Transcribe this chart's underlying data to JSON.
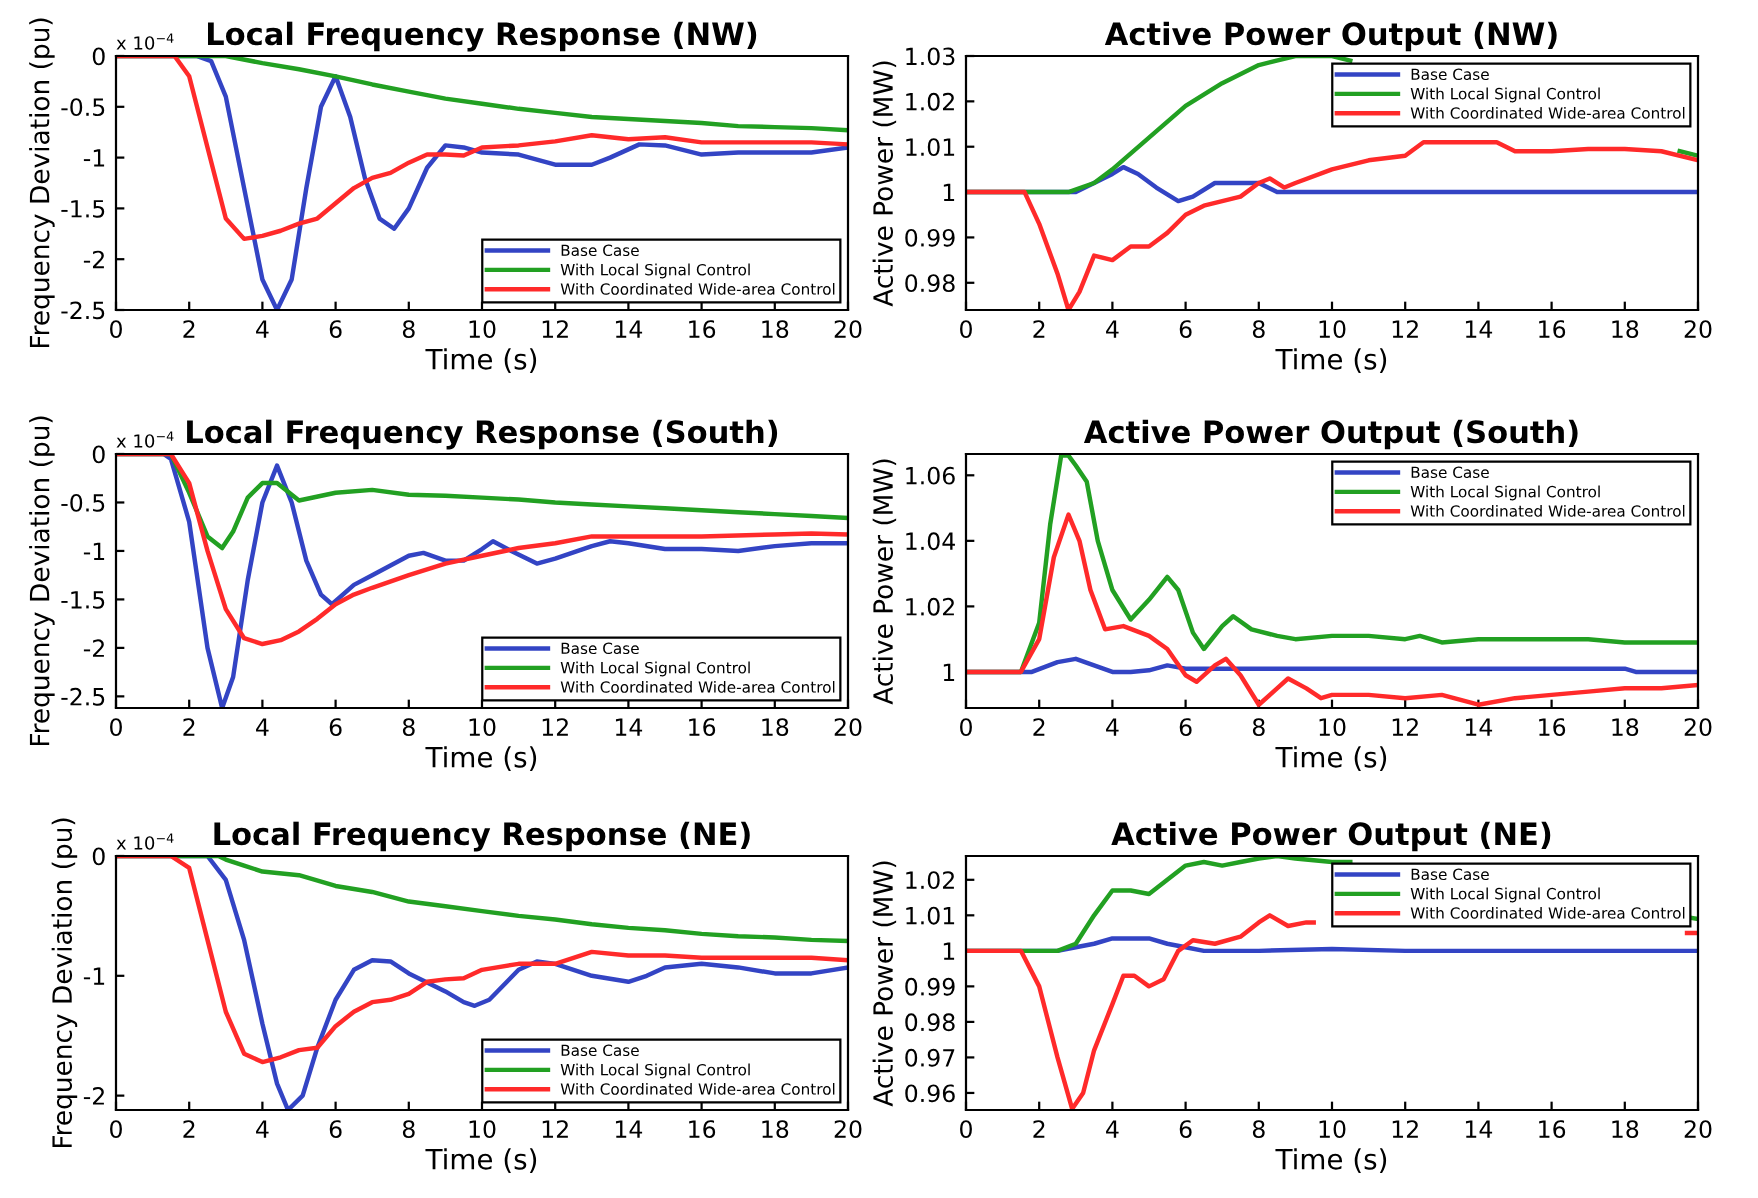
{
  "chart_data": [
    {
      "type": "line",
      "title": "Local Frequency Response (NW)",
      "xlabel": "Time (s)",
      "ylabel": "Frequency Deviation (pu)",
      "annotations": [
        "x 10$^{−4}$"
      ],
      "legend": "bottom right",
      "xlim": [
        0,
        20
      ],
      "xticks": [
        0,
        2,
        4,
        6,
        8,
        10,
        12,
        14,
        16,
        18,
        20
      ],
      "ylim": [
        -2.5,
        0
      ],
      "yticks": [
        0,
        -0.5,
        -1,
        -1.5,
        -2,
        -2.5
      ],
      "series": [
        {
          "name": "Base Case",
          "color": "#3344c4",
          "x": [
            0,
            1,
            2.2,
            2.6,
            3,
            3.5,
            4,
            4.4,
            4.8,
            5.2,
            5.6,
            6.0,
            6.4,
            6.8,
            7.2,
            7.6,
            8.0,
            8.5,
            9.0,
            9.5,
            10,
            11,
            12,
            13,
            13.5,
            14.3,
            15,
            16,
            17,
            18,
            19,
            20
          ],
          "values": [
            0,
            0,
            0,
            -0.05,
            -0.4,
            -1.3,
            -2.2,
            -2.5,
            -2.2,
            -1.3,
            -0.5,
            -0.2,
            -0.6,
            -1.2,
            -1.6,
            -1.7,
            -1.5,
            -1.1,
            -0.88,
            -0.9,
            -0.95,
            -0.97,
            -1.07,
            -1.07,
            -1.0,
            -0.87,
            -0.88,
            -0.97,
            -0.95,
            -0.95,
            -0.95,
            -0.9
          ]
        },
        {
          "name": "With Local Signal Control",
          "color": "#22a022",
          "x": [
            0,
            2,
            3,
            4,
            5,
            6,
            7,
            8,
            9,
            10,
            11,
            12,
            13,
            14,
            15,
            16,
            17,
            18,
            19,
            20
          ],
          "values": [
            0,
            0,
            0,
            -0.07,
            -0.13,
            -0.2,
            -0.28,
            -0.35,
            -0.42,
            -0.47,
            -0.52,
            -0.56,
            -0.6,
            -0.62,
            -0.64,
            -0.66,
            -0.69,
            -0.7,
            -0.71,
            -0.73
          ]
        },
        {
          "name": "With Coordinated Wide-area Control",
          "color": "#ff2a2a",
          "x": [
            0,
            1.6,
            2,
            2.5,
            3,
            3.5,
            4,
            4.5,
            5,
            5.5,
            6,
            6.5,
            7,
            7.5,
            8,
            8.5,
            9,
            9.5,
            10,
            11,
            12,
            13,
            14,
            15,
            16,
            17,
            18,
            19,
            20
          ],
          "values": [
            0,
            0,
            -0.2,
            -0.9,
            -1.6,
            -1.8,
            -1.77,
            -1.72,
            -1.65,
            -1.6,
            -1.45,
            -1.3,
            -1.2,
            -1.15,
            -1.05,
            -0.97,
            -0.97,
            -0.98,
            -0.9,
            -0.88,
            -0.84,
            -0.78,
            -0.82,
            -0.8,
            -0.85,
            -0.85,
            -0.85,
            -0.85,
            -0.87
          ]
        }
      ]
    },
    {
      "type": "line",
      "title": "Active Power Output (NW)",
      "xlabel": "Time (s)",
      "ylabel": "Active Power (MW)",
      "legend": "top right",
      "xlim": [
        0,
        20
      ],
      "xticks": [
        0,
        2,
        4,
        6,
        8,
        10,
        12,
        14,
        16,
        18,
        20
      ],
      "ylim": [
        0.974,
        1.03
      ],
      "yticks": [
        0.98,
        0.99,
        1,
        1.01,
        1.02,
        1.03
      ],
      "series": [
        {
          "name": "Base Case",
          "color": "#3344c4",
          "x": [
            0,
            3,
            3.5,
            4,
            4.3,
            4.7,
            5.2,
            5.8,
            6.2,
            6.8,
            7.5,
            8,
            8.5,
            10,
            12,
            14,
            16,
            18,
            20
          ],
          "values": [
            1,
            1,
            1.002,
            1.004,
            1.0055,
            1.004,
            1.001,
            0.998,
            0.999,
            1.002,
            1.002,
            1.002,
            1.0,
            1.0,
            1.0,
            1.0,
            1.0,
            1.0,
            1.0
          ]
        },
        {
          "name": "With Local Signal Control",
          "color": "#22a022",
          "x": [
            0,
            2.8,
            3.5,
            4,
            5,
            6,
            7,
            8,
            9,
            10,
            10.5,
            11,
            19,
            19.5,
            20
          ],
          "values": [
            1,
            1,
            1.002,
            1.005,
            1.012,
            1.019,
            1.024,
            1.028,
            1.03,
            1.03,
            1.029,
            null,
            null,
            1.009,
            1.008
          ]
        },
        {
          "name": "With Coordinated Wide-area Control",
          "color": "#ff2a2a",
          "x": [
            0,
            1.6,
            2,
            2.5,
            2.8,
            3.1,
            3.5,
            4,
            4.5,
            5,
            5.5,
            6,
            6.5,
            7,
            7.5,
            8,
            8.3,
            8.7,
            9,
            10,
            11,
            12,
            12.5,
            13,
            14,
            14.5,
            15,
            16,
            17,
            18,
            19,
            20
          ],
          "values": [
            1,
            1,
            0.993,
            0.982,
            0.974,
            0.978,
            0.986,
            0.985,
            0.988,
            0.988,
            0.991,
            0.995,
            0.997,
            0.998,
            0.999,
            1.002,
            1.003,
            1.001,
            1.002,
            1.005,
            1.007,
            1.008,
            1.011,
            1.011,
            1.011,
            1.011,
            1.009,
            1.009,
            1.0095,
            1.0095,
            1.009,
            1.007
          ]
        }
      ]
    },
    {
      "type": "line",
      "title": "Local Frequency Response (South)",
      "xlabel": "Time (s)",
      "ylabel": "Frequency Deviation (pu)",
      "annotations": [
        "x 10$^{−4}$"
      ],
      "legend": "bottom right",
      "xlim": [
        0,
        20
      ],
      "xticks": [
        0,
        2,
        4,
        6,
        8,
        10,
        12,
        14,
        16,
        18,
        20
      ],
      "ylim": [
        -2.62,
        0
      ],
      "yticks": [
        0,
        -0.5,
        -1,
        -1.5,
        -2,
        -2.5
      ],
      "series": [
        {
          "name": "Base Case",
          "color": "#3344c4",
          "x": [
            0,
            1.3,
            1.5,
            2,
            2.5,
            2.9,
            3.2,
            3.6,
            4.0,
            4.4,
            4.8,
            5.2,
            5.6,
            5.9,
            6.5,
            7,
            7.5,
            8,
            8.4,
            9,
            9.5,
            10,
            10.3,
            10.8,
            11.5,
            12,
            13,
            13.5,
            14,
            15,
            16,
            17,
            18,
            19,
            20
          ],
          "values": [
            0,
            0,
            -0.05,
            -0.7,
            -2.0,
            -2.62,
            -2.3,
            -1.3,
            -0.5,
            -0.12,
            -0.5,
            -1.1,
            -1.45,
            -1.55,
            -1.35,
            -1.25,
            -1.15,
            -1.05,
            -1.02,
            -1.1,
            -1.1,
            -0.98,
            -0.9,
            -1.0,
            -1.13,
            -1.08,
            -0.95,
            -0.9,
            -0.92,
            -0.98,
            -0.98,
            -1.0,
            -0.95,
            -0.92,
            -0.92
          ]
        },
        {
          "name": "With Local Signal Control",
          "color": "#22a022",
          "x": [
            0,
            1.5,
            2,
            2.5,
            2.9,
            3.2,
            3.6,
            4,
            4.4,
            5,
            6,
            7,
            8,
            9,
            10,
            11,
            12,
            13,
            14,
            15,
            16,
            17,
            18,
            19,
            20
          ],
          "values": [
            0,
            0,
            -0.4,
            -0.85,
            -0.97,
            -0.8,
            -0.45,
            -0.3,
            -0.3,
            -0.48,
            -0.4,
            -0.37,
            -0.42,
            -0.43,
            -0.45,
            -0.47,
            -0.5,
            -0.52,
            -0.54,
            -0.56,
            -0.58,
            -0.6,
            -0.62,
            -0.64,
            -0.66
          ]
        },
        {
          "name": "With Coordinated Wide-area Control",
          "color": "#ff2a2a",
          "x": [
            0,
            1.5,
            2,
            2.5,
            3,
            3.5,
            4,
            4.5,
            5,
            5.5,
            6,
            6.5,
            7,
            8,
            9,
            10,
            11,
            12,
            13,
            14,
            16,
            18,
            19,
            20
          ],
          "values": [
            0,
            0,
            -0.3,
            -1.0,
            -1.6,
            -1.9,
            -1.96,
            -1.92,
            -1.83,
            -1.7,
            -1.55,
            -1.45,
            -1.38,
            -1.25,
            -1.13,
            -1.05,
            -0.97,
            -0.92,
            -0.85,
            -0.85,
            -0.85,
            -0.83,
            -0.82,
            -0.83
          ]
        }
      ]
    },
    {
      "type": "line",
      "title": "Active Power Output (South)",
      "xlabel": "Time (s)",
      "ylabel": "Active Power (MW)",
      "legend": "top right",
      "xlim": [
        0,
        20
      ],
      "xticks": [
        0,
        2,
        4,
        6,
        8,
        10,
        12,
        14,
        16,
        18,
        20
      ],
      "ylim": [
        0.989,
        1.0665
      ],
      "yticks": [
        1,
        1.02,
        1.04,
        1.06
      ],
      "series": [
        {
          "name": "Base Case",
          "color": "#3344c4",
          "x": [
            0,
            1.8,
            2.5,
            3,
            3.5,
            4,
            4.5,
            5,
            5.5,
            6,
            7,
            10,
            14,
            18,
            18.3,
            20
          ],
          "values": [
            1,
            1,
            1.003,
            1.004,
            1.002,
            1.0,
            1.0,
            1.0005,
            1.002,
            1.001,
            1.001,
            1.001,
            1.001,
            1.001,
            1.0,
            1.0
          ]
        },
        {
          "name": "With Local Signal Control",
          "color": "#22a022",
          "x": [
            0,
            1.5,
            2,
            2.3,
            2.6,
            2.8,
            3.0,
            3.3,
            3.6,
            4,
            4.5,
            5,
            5.5,
            5.8,
            6.2,
            6.5,
            7,
            7.3,
            7.8,
            8.5,
            9,
            10,
            11,
            12,
            12.4,
            13,
            14,
            15,
            16,
            17,
            18,
            19,
            20
          ],
          "values": [
            1,
            1,
            1.015,
            1.045,
            1.066,
            1.066,
            1.063,
            1.058,
            1.04,
            1.025,
            1.016,
            1.022,
            1.029,
            1.025,
            1.012,
            1.007,
            1.014,
            1.017,
            1.013,
            1.011,
            1.01,
            1.011,
            1.011,
            1.01,
            1.011,
            1.009,
            1.01,
            1.01,
            1.01,
            1.01,
            1.009,
            1.009,
            1.009
          ]
        },
        {
          "name": "With Coordinated Wide-area Control",
          "color": "#ff2a2a",
          "x": [
            0,
            1.5,
            2,
            2.4,
            2.8,
            3.1,
            3.4,
            3.8,
            4.3,
            5,
            5.5,
            6,
            6.3,
            6.8,
            7.1,
            7.5,
            8,
            8.5,
            8.8,
            9.3,
            9.7,
            10,
            11,
            12,
            13,
            14,
            15,
            16,
            17,
            18,
            19,
            20
          ],
          "values": [
            1,
            1,
            1.01,
            1.035,
            1.048,
            1.04,
            1.025,
            1.013,
            1.014,
            1.011,
            1.007,
            0.999,
            0.997,
            1.002,
            1.004,
            0.999,
            0.99,
            0.995,
            0.998,
            0.995,
            0.992,
            0.993,
            0.993,
            0.992,
            0.993,
            0.99,
            0.992,
            0.993,
            0.994,
            0.995,
            0.995,
            0.996
          ]
        }
      ]
    },
    {
      "type": "line",
      "title": "Local Frequency Response (NE)",
      "xlabel": "Time (s)",
      "ylabel": "Frequency Deviation (pu)",
      "annotations": [
        "x 10$^{−4}$"
      ],
      "legend": "bottom right",
      "xlim": [
        0,
        20
      ],
      "xticks": [
        0,
        2,
        4,
        6,
        8,
        10,
        12,
        14,
        16,
        18,
        20
      ],
      "ylim": [
        -2.12,
        0
      ],
      "yticks": [
        0,
        -1,
        -2
      ],
      "series": [
        {
          "name": "Base Case",
          "color": "#3344c4",
          "x": [
            0,
            2.5,
            3,
            3.5,
            4,
            4.4,
            4.7,
            5.1,
            5.5,
            6,
            6.5,
            7,
            7.5,
            8,
            9,
            9.5,
            9.8,
            10.2,
            11,
            11.5,
            12,
            13,
            14,
            14.5,
            15,
            16,
            17,
            18,
            19,
            20
          ],
          "values": [
            0,
            0,
            -0.2,
            -0.7,
            -1.4,
            -1.9,
            -2.12,
            -2.0,
            -1.6,
            -1.2,
            -0.95,
            -0.87,
            -0.88,
            -0.98,
            -1.13,
            -1.22,
            -1.25,
            -1.2,
            -0.95,
            -0.88,
            -0.9,
            -1.0,
            -1.05,
            -1.0,
            -0.93,
            -0.9,
            -0.93,
            -0.98,
            -0.98,
            -0.93
          ]
        },
        {
          "name": "With Local Signal Control",
          "color": "#22a022",
          "x": [
            0,
            2.8,
            3,
            3.5,
            4,
            5,
            6,
            7,
            8,
            9,
            10,
            11,
            12,
            13,
            14,
            15,
            16,
            17,
            18,
            19,
            20
          ],
          "values": [
            0,
            0,
            -0.03,
            -0.08,
            -0.13,
            -0.16,
            -0.25,
            -0.3,
            -0.38,
            -0.42,
            -0.46,
            -0.5,
            -0.53,
            -0.57,
            -0.6,
            -0.62,
            -0.65,
            -0.67,
            -0.68,
            -0.7,
            -0.71
          ]
        },
        {
          "name": "With Coordinated Wide-area Control",
          "color": "#ff2a2a",
          "x": [
            0,
            1.5,
            2,
            2.5,
            3,
            3.5,
            4,
            4.5,
            5,
            5.5,
            6,
            6.5,
            7,
            7.5,
            8,
            8.5,
            9,
            9.5,
            10,
            11,
            12,
            13,
            14,
            15,
            16,
            17,
            18,
            19,
            20
          ],
          "values": [
            0,
            0,
            -0.1,
            -0.7,
            -1.3,
            -1.65,
            -1.72,
            -1.68,
            -1.62,
            -1.6,
            -1.42,
            -1.3,
            -1.22,
            -1.2,
            -1.15,
            -1.05,
            -1.03,
            -1.02,
            -0.95,
            -0.9,
            -0.9,
            -0.8,
            -0.83,
            -0.83,
            -0.85,
            -0.85,
            -0.85,
            -0.85,
            -0.87
          ]
        }
      ]
    },
    {
      "type": "line",
      "title": "Active Power Output (NE)",
      "xlabel": "Time (s)",
      "ylabel": "Active Power (MW)",
      "legend": "top right",
      "xlim": [
        0,
        20
      ],
      "xticks": [
        0,
        2,
        4,
        6,
        8,
        10,
        12,
        14,
        16,
        18,
        20
      ],
      "ylim": [
        0.9552,
        1.0267
      ],
      "yticks": [
        0.96,
        0.97,
        0.98,
        0.99,
        1,
        1.01,
        1.02
      ],
      "series": [
        {
          "name": "Base Case",
          "color": "#3344c4",
          "x": [
            0,
            2.5,
            3,
            3.5,
            4,
            4.5,
            5,
            5.5,
            6,
            6.5,
            8,
            10,
            12,
            14,
            16,
            18,
            20
          ],
          "values": [
            1,
            1,
            1.001,
            1.002,
            1.0035,
            1.0035,
            1.0035,
            1.002,
            1.001,
            1.0,
            1.0,
            1.0005,
            1.0,
            1.0,
            1.0,
            1.0,
            1.0
          ]
        },
        {
          "name": "With Local Signal Control",
          "color": "#22a022",
          "x": [
            0,
            2.5,
            3,
            3.5,
            4,
            4.5,
            5,
            5.5,
            6,
            6.5,
            7,
            7.5,
            8,
            8.5,
            9,
            10,
            10.5,
            11,
            19,
            19.7,
            20
          ],
          "values": [
            1,
            1,
            1.002,
            1.01,
            1.017,
            1.017,
            1.016,
            1.02,
            1.024,
            1.025,
            1.024,
            1.025,
            1.026,
            1.0267,
            1.026,
            1.025,
            1.025,
            null,
            null,
            1.0095,
            1.009
          ]
        },
        {
          "name": "With Coordinated Wide-area Control",
          "color": "#ff2a2a",
          "x": [
            0,
            1.5,
            2,
            2.5,
            2.9,
            3.2,
            3.5,
            4,
            4.3,
            4.6,
            5,
            5.4,
            5.8,
            6.2,
            6.8,
            7.5,
            8,
            8.3,
            8.8,
            9.3,
            9.5,
            10,
            19,
            19.7,
            20
          ],
          "values": [
            1,
            1,
            0.99,
            0.97,
            0.9555,
            0.96,
            0.972,
            0.985,
            0.993,
            0.993,
            0.99,
            0.992,
            1.0,
            1.003,
            1.002,
            1.004,
            1.008,
            1.01,
            1.007,
            1.008,
            1.008,
            null,
            null,
            1.005,
            1.005
          ]
        }
      ]
    }
  ]
}
